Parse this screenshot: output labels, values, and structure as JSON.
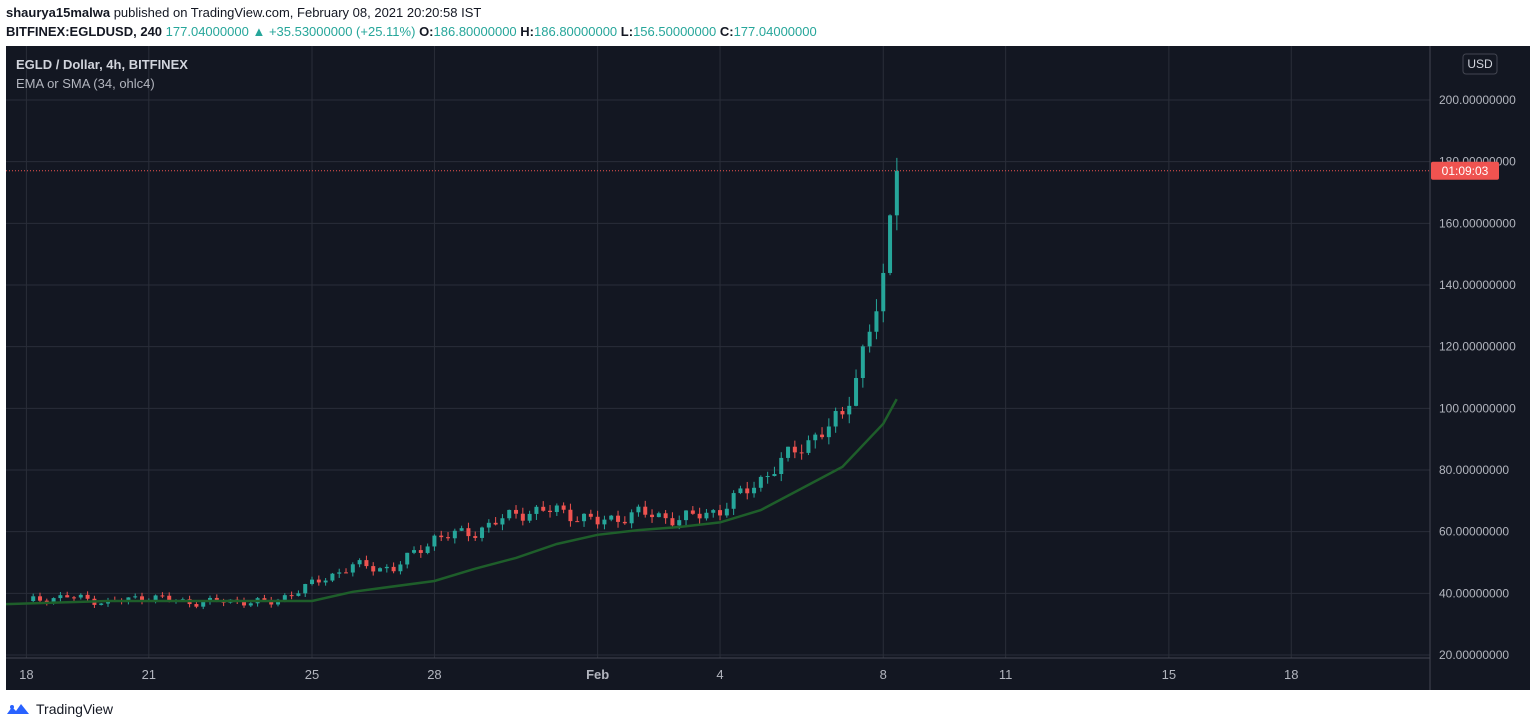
{
  "header": {
    "author": "shaurya15malwa",
    "published_text": "published on TradingView.com, February 08, 2021 20:20:58 IST",
    "symbol": "BITFINEX:EGLDUSD, 240",
    "last": "177.04000000",
    "change": "+35.53000000 (+25.11%)",
    "o_label": "O:",
    "o_value": "186.80000000",
    "h_label": "H:",
    "h_value": "186.80000000",
    "l_label": "L:",
    "l_value": "156.50000000",
    "c_label": "C:",
    "c_value": "177.04000000"
  },
  "legend": {
    "title": "EGLD / Dollar, 4h, BITFINEX",
    "indicator": "EMA or SMA (34, ohlc4)"
  },
  "currency_button": "USD",
  "countdown": "01:09:03",
  "footer": {
    "brand": "TradingView"
  },
  "colors": {
    "background": "#131722",
    "grid": "#2a2e39",
    "up": "#26a69a",
    "down": "#ef5350",
    "ma": "#1e5e2a",
    "text": "#b2b5be"
  },
  "chart_data": {
    "type": "candlestick",
    "title": "EGLD / Dollar, 4h, BITFINEX",
    "ylim": [
      20,
      200
    ],
    "y_ticks": [
      "200.00000000",
      "180.00000000",
      "160.00000000",
      "140.00000000",
      "120.00000000",
      "100.00000000",
      "80.00000000",
      "60.00000000",
      "40.00000000",
      "20.00000000"
    ],
    "y_tick_values": [
      200,
      180,
      160,
      140,
      120,
      100,
      80,
      60,
      40,
      20
    ],
    "x_ticks": [
      "18",
      "21",
      "25",
      "28",
      "Feb",
      "4",
      "8",
      "11",
      "15",
      "18"
    ],
    "x_tick_days": [
      0,
      3,
      7,
      10,
      14,
      17,
      21,
      24,
      28,
      31
    ],
    "xlim_days": [
      -0.5,
      34.4
    ],
    "last_price": 177.04,
    "ma_name": "EMA or SMA (34, ohlc4)",
    "candles_daily_close": [
      {
        "day": 0,
        "close": 37.5
      },
      {
        "day": 1,
        "close": 39.0
      },
      {
        "day": 2,
        "close": 37.0
      },
      {
        "day": 3,
        "close": 39.0
      },
      {
        "day": 4,
        "close": 37.0
      },
      {
        "day": 5,
        "close": 37.5
      },
      {
        "day": 6,
        "close": 37.0
      },
      {
        "day": 7,
        "close": 43.0
      },
      {
        "day": 8,
        "close": 49.0
      },
      {
        "day": 9,
        "close": 48.0
      },
      {
        "day": 10,
        "close": 58.0
      },
      {
        "day": 11,
        "close": 60.0
      },
      {
        "day": 12,
        "close": 66.0
      },
      {
        "day": 13,
        "close": 67.0
      },
      {
        "day": 14,
        "close": 63.0
      },
      {
        "day": 15,
        "close": 66.0
      },
      {
        "day": 16,
        "close": 64.0
      },
      {
        "day": 17,
        "close": 67.0
      },
      {
        "day": 18,
        "close": 77.0
      },
      {
        "day": 19,
        "close": 88.0
      },
      {
        "day": 20,
        "close": 97.0
      },
      {
        "day": 21,
        "close": 140.0
      },
      {
        "day": 21.33,
        "close": 177.04
      }
    ],
    "ma_daily": [
      {
        "day": -0.5,
        "value": 36.5
      },
      {
        "day": 2,
        "value": 37.5
      },
      {
        "day": 7,
        "value": 37.5
      },
      {
        "day": 8,
        "value": 40.5
      },
      {
        "day": 10,
        "value": 44.0
      },
      {
        "day": 11,
        "value": 48.0
      },
      {
        "day": 12,
        "value": 51.5
      },
      {
        "day": 13,
        "value": 56.0
      },
      {
        "day": 14,
        "value": 59.0
      },
      {
        "day": 15,
        "value": 60.5
      },
      {
        "day": 16,
        "value": 61.5
      },
      {
        "day": 17,
        "value": 63.0
      },
      {
        "day": 18,
        "value": 67.0
      },
      {
        "day": 19,
        "value": 74.0
      },
      {
        "day": 20,
        "value": 81.0
      },
      {
        "day": 21,
        "value": 95.0
      },
      {
        "day": 21.33,
        "value": 103.0
      }
    ]
  }
}
